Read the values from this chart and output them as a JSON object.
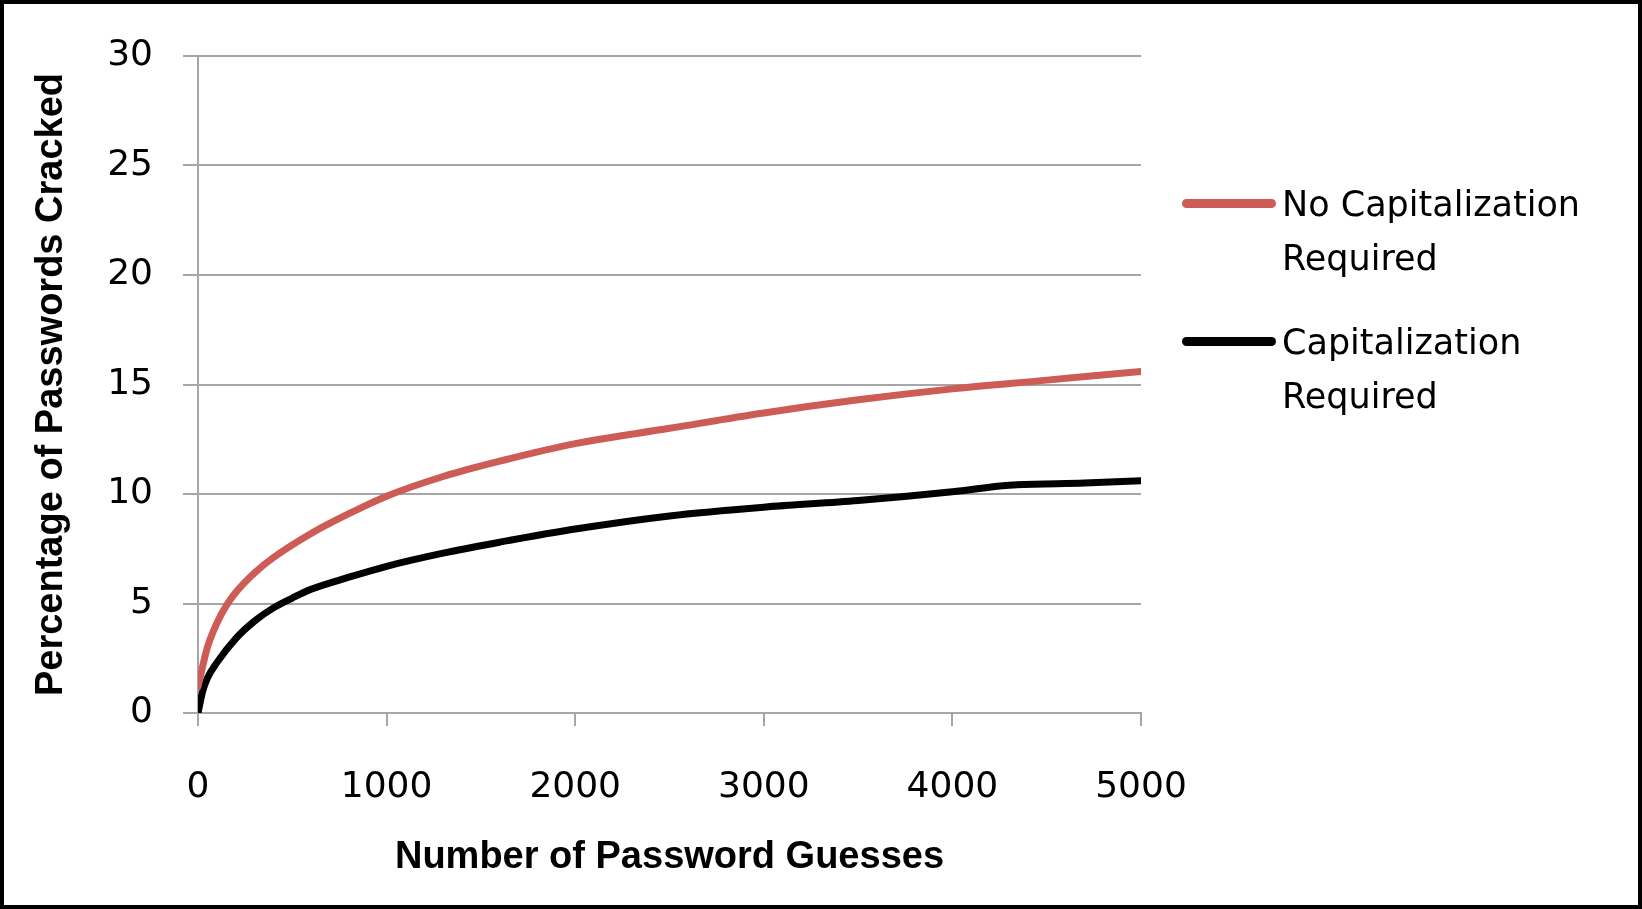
{
  "chart_data": {
    "type": "line",
    "xlabel": "Number of Password Guesses",
    "ylabel": "Percentage of Passwords Cracked",
    "xlim": [
      0,
      5000
    ],
    "xticks": [
      0,
      1000,
      2000,
      3000,
      4000,
      5000
    ],
    "ylim": [
      0,
      30
    ],
    "yticks": [
      0,
      5,
      10,
      15,
      20,
      25,
      30
    ],
    "grid": "y",
    "legend": "right",
    "marker": "none",
    "line_style": "solid",
    "series": [
      {
        "name": "No Capitalization Required",
        "color": "#cd5c56",
        "x": [
          0,
          50,
          100,
          150,
          200,
          300,
          400,
          600,
          800,
          1000,
          1300,
          1600,
          2000,
          2500,
          3000,
          3500,
          4000,
          4500,
          5000
        ],
        "values": [
          1.2,
          3.0,
          4.1,
          4.9,
          5.5,
          6.4,
          7.1,
          8.2,
          9.1,
          9.9,
          10.8,
          11.5,
          12.3,
          13.0,
          13.7,
          14.3,
          14.8,
          15.2,
          15.6
        ]
      },
      {
        "name": "Capitalization Required",
        "color": "#000000",
        "x": [
          0,
          25,
          50,
          100,
          200,
          300,
          400,
          500,
          600,
          800,
          1000,
          1300,
          1600,
          2000,
          2500,
          3000,
          3500,
          4000,
          4300,
          4700,
          5000
        ],
        "values": [
          0,
          1.0,
          1.6,
          2.3,
          3.4,
          4.2,
          4.8,
          5.25,
          5.65,
          6.2,
          6.7,
          7.3,
          7.8,
          8.4,
          9.0,
          9.4,
          9.7,
          10.1,
          10.4,
          10.5,
          10.6
        ]
      }
    ]
  }
}
